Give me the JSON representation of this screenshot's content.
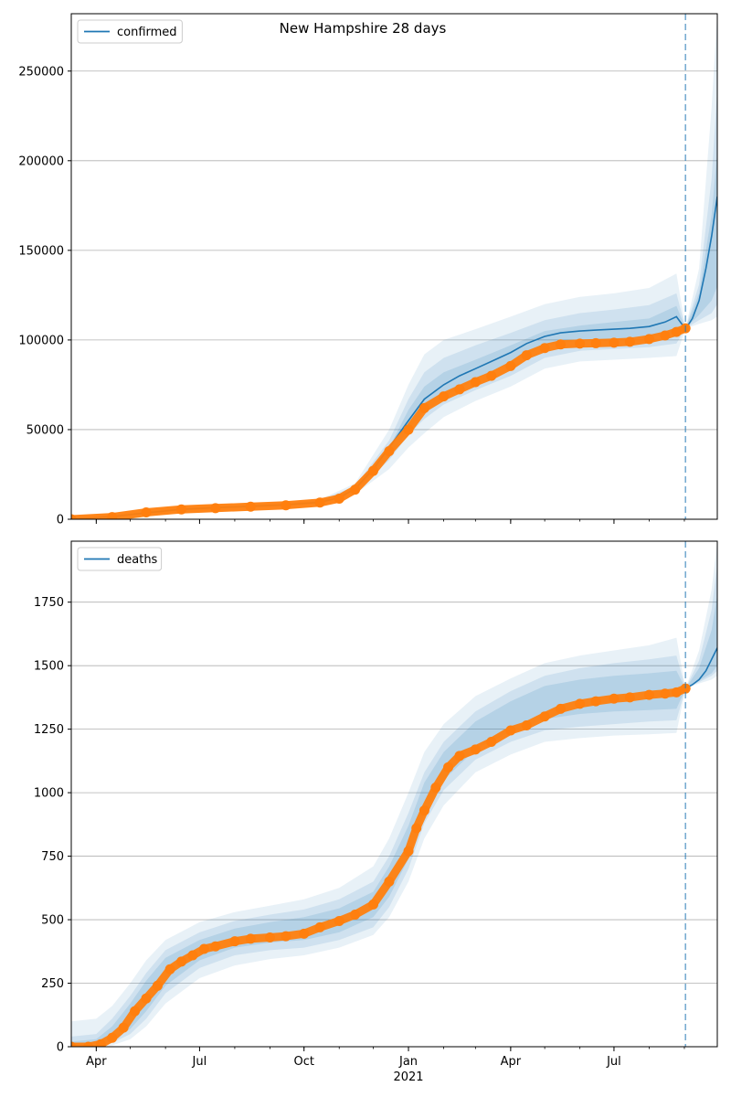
{
  "title": "New Hampshire 28 days",
  "colors": {
    "model": "#1f77b4",
    "observed": "#ff7f0e",
    "band": "#1f77b4",
    "grid": "#b0b0b0",
    "forecast_line": "#1f77b4"
  },
  "x_axis": {
    "start": "2020-03-10",
    "end": "2021-09-30",
    "ticks": [
      {
        "date": "2020-04-01",
        "label": "Apr"
      },
      {
        "date": "2020-07-01",
        "label": "Jul"
      },
      {
        "date": "2020-10-01",
        "label": "Oct"
      },
      {
        "date": "2021-01-01",
        "label": "Jan"
      },
      {
        "date": "2021-04-01",
        "label": "Apr"
      },
      {
        "date": "2021-07-01",
        "label": "Jul"
      }
    ],
    "year_label": {
      "date": "2021-01-01",
      "label": "2021"
    },
    "forecast_start": "2021-09-02"
  },
  "chart_data": [
    {
      "type": "line",
      "legend": "confirmed",
      "legend_position": "top-left",
      "grid": "horizontal",
      "ylim": [
        0,
        282000
      ],
      "yticks": [
        0,
        50000,
        100000,
        150000,
        200000,
        250000
      ],
      "series": [
        {
          "name": "confirmed",
          "role": "model",
          "x": [
            "2020-03-10",
            "2020-04-15",
            "2020-05-15",
            "2020-06-15",
            "2020-07-15",
            "2020-08-15",
            "2020-09-15",
            "2020-10-15",
            "2020-11-01",
            "2020-11-15",
            "2020-12-01",
            "2020-12-15",
            "2021-01-01",
            "2021-01-15",
            "2021-02-01",
            "2021-02-15",
            "2021-03-01",
            "2021-03-15",
            "2021-04-01",
            "2021-04-15",
            "2021-05-01",
            "2021-05-15",
            "2021-06-01",
            "2021-06-15",
            "2021-07-01",
            "2021-07-15",
            "2021-08-01",
            "2021-08-15",
            "2021-08-25",
            "2021-09-02",
            "2021-09-08",
            "2021-09-14",
            "2021-09-20",
            "2021-09-25",
            "2021-09-30"
          ],
          "values": [
            0,
            1500,
            3500,
            5500,
            6500,
            7200,
            8000,
            9500,
            12000,
            17000,
            28000,
            40000,
            55000,
            67000,
            75000,
            80000,
            84000,
            88000,
            93000,
            98000,
            102000,
            104000,
            105000,
            105500,
            106000,
            106500,
            107500,
            110000,
            113000,
            106000,
            112000,
            122000,
            140000,
            158000,
            180000
          ]
        },
        {
          "name": "observed",
          "role": "observed",
          "x": [
            "2020-03-10",
            "2020-04-15",
            "2020-05-15",
            "2020-06-15",
            "2020-07-15",
            "2020-08-15",
            "2020-09-15",
            "2020-10-15",
            "2020-11-01",
            "2020-11-15",
            "2020-12-01",
            "2020-12-15",
            "2021-01-01",
            "2021-01-15",
            "2021-02-01",
            "2021-02-15",
            "2021-03-01",
            "2021-03-15",
            "2021-04-01",
            "2021-04-15",
            "2021-05-01",
            "2021-05-15",
            "2021-06-01",
            "2021-06-15",
            "2021-07-01",
            "2021-07-15",
            "2021-08-01",
            "2021-08-15",
            "2021-08-25",
            "2021-09-02"
          ],
          "values": [
            0,
            1200,
            3800,
            5500,
            6200,
            7000,
            7800,
            9300,
            11500,
            16500,
            27000,
            38000,
            50000,
            62000,
            68500,
            72500,
            76500,
            80000,
            85500,
            91500,
            95500,
            97500,
            98000,
            98200,
            98500,
            99000,
            100500,
            102500,
            104500,
            106500
          ]
        }
      ],
      "bands": [
        {
          "level": "outer",
          "x": [
            "2020-03-10",
            "2020-06-15",
            "2020-10-15",
            "2020-11-15",
            "2020-12-15",
            "2021-01-01",
            "2021-01-15",
            "2021-02-01",
            "2021-03-01",
            "2021-04-01",
            "2021-05-01",
            "2021-06-01",
            "2021-07-01",
            "2021-08-01",
            "2021-08-25",
            "2021-09-02",
            "2021-09-14",
            "2021-09-25",
            "2021-09-30"
          ],
          "upper": [
            200,
            6500,
            11000,
            20000,
            50000,
            75000,
            92000,
            100000,
            106000,
            113000,
            120000,
            124000,
            126000,
            129000,
            137000,
            106500,
            140000,
            230000,
            282000
          ],
          "lower": [
            0,
            4500,
            8500,
            14000,
            28000,
            40000,
            48000,
            57000,
            66000,
            74000,
            84000,
            88000,
            89000,
            90000,
            91000,
            106500,
            109000,
            111000,
            113000
          ]
        },
        {
          "level": "middle",
          "x": [
            "2020-03-10",
            "2020-06-15",
            "2020-10-15",
            "2020-11-15",
            "2020-12-15",
            "2021-01-01",
            "2021-01-15",
            "2021-02-01",
            "2021-03-01",
            "2021-04-01",
            "2021-05-01",
            "2021-06-01",
            "2021-07-01",
            "2021-08-01",
            "2021-08-25",
            "2021-09-02",
            "2021-09-14",
            "2021-09-25",
            "2021-09-30"
          ],
          "upper": [
            100,
            6000,
            10500,
            18500,
            44000,
            67000,
            82000,
            90000,
            97000,
            104000,
            111000,
            115000,
            117000,
            119500,
            126000,
            106500,
            131000,
            190000,
            240000
          ],
          "lower": [
            0,
            5000,
            9000,
            15500,
            33000,
            47000,
            56000,
            64000,
            72000,
            80000,
            90000,
            94000,
            95000,
            96000,
            98000,
            106500,
            111000,
            115000,
            120000
          ]
        },
        {
          "level": "inner",
          "x": [
            "2020-03-10",
            "2020-06-15",
            "2020-10-15",
            "2020-11-15",
            "2020-12-15",
            "2021-01-01",
            "2021-01-15",
            "2021-02-01",
            "2021-03-01",
            "2021-04-01",
            "2021-05-01",
            "2021-06-01",
            "2021-07-01",
            "2021-08-01",
            "2021-08-25",
            "2021-09-02",
            "2021-09-14",
            "2021-09-25",
            "2021-09-30"
          ],
          "upper": [
            50,
            5700,
            10000,
            17500,
            40000,
            61000,
            74000,
            82000,
            89000,
            97000,
            105000,
            108000,
            110000,
            112000,
            119000,
            106500,
            126000,
            170000,
            205000
          ],
          "lower": [
            0,
            5300,
            9200,
            16000,
            35000,
            50000,
            60000,
            68000,
            78000,
            87000,
            97000,
            100000,
            100500,
            101500,
            104000,
            106500,
            114000,
            122000,
            130000
          ]
        }
      ]
    },
    {
      "type": "line",
      "legend": "deaths",
      "legend_position": "top-left",
      "grid": "horizontal",
      "ylim": [
        0,
        1990
      ],
      "yticks": [
        0,
        250,
        500,
        750,
        1000,
        1250,
        1500,
        1750
      ],
      "series": [
        {
          "name": "deaths",
          "role": "model",
          "x": [
            "2021-09-02",
            "2021-09-08",
            "2021-09-14",
            "2021-09-20",
            "2021-09-25",
            "2021-09-30"
          ],
          "values": [
            1410,
            1425,
            1445,
            1480,
            1525,
            1570
          ]
        },
        {
          "name": "observed",
          "role": "observed",
          "x": [
            "2020-03-10",
            "2020-03-25",
            "2020-04-05",
            "2020-04-15",
            "2020-04-25",
            "2020-05-05",
            "2020-05-15",
            "2020-05-25",
            "2020-06-05",
            "2020-06-15",
            "2020-06-25",
            "2020-07-05",
            "2020-07-15",
            "2020-08-01",
            "2020-08-15",
            "2020-09-01",
            "2020-09-15",
            "2020-10-01",
            "2020-10-15",
            "2020-11-01",
            "2020-11-15",
            "2020-12-01",
            "2020-12-15",
            "2021-01-01",
            "2021-01-08",
            "2021-01-15",
            "2021-01-25",
            "2021-02-05",
            "2021-02-15",
            "2021-03-01",
            "2021-03-15",
            "2021-04-01",
            "2021-04-15",
            "2021-05-01",
            "2021-05-15",
            "2021-06-01",
            "2021-06-15",
            "2021-07-01",
            "2021-07-15",
            "2021-08-01",
            "2021-08-15",
            "2021-08-25",
            "2021-09-02"
          ],
          "values": [
            0,
            0,
            10,
            35,
            75,
            140,
            190,
            240,
            305,
            335,
            360,
            385,
            395,
            415,
            425,
            430,
            435,
            445,
            470,
            495,
            520,
            560,
            650,
            770,
            860,
            930,
            1020,
            1100,
            1145,
            1170,
            1200,
            1245,
            1265,
            1300,
            1330,
            1350,
            1360,
            1370,
            1375,
            1385,
            1390,
            1395,
            1410
          ]
        }
      ],
      "bands": [
        {
          "level": "outer",
          "x": [
            "2020-03-10",
            "2020-04-01",
            "2020-04-15",
            "2020-05-01",
            "2020-05-15",
            "2020-06-01",
            "2020-07-01",
            "2020-08-01",
            "2020-09-01",
            "2020-10-01",
            "2020-11-01",
            "2020-12-01",
            "2020-12-15",
            "2021-01-01",
            "2021-01-15",
            "2021-02-01",
            "2021-03-01",
            "2021-04-01",
            "2021-05-01",
            "2021-06-01",
            "2021-07-01",
            "2021-08-01",
            "2021-08-25",
            "2021-09-02",
            "2021-09-14",
            "2021-09-25",
            "2021-09-30"
          ],
          "upper": [
            100,
            110,
            160,
            250,
            340,
            420,
            490,
            530,
            555,
            580,
            625,
            710,
            820,
            1000,
            1160,
            1270,
            1380,
            1450,
            1510,
            1540,
            1560,
            1580,
            1610,
            1410,
            1560,
            1800,
            1990
          ],
          "lower": [
            0,
            0,
            5,
            30,
            80,
            170,
            270,
            320,
            345,
            360,
            390,
            440,
            510,
            650,
            820,
            950,
            1080,
            1150,
            1200,
            1215,
            1225,
            1230,
            1235,
            1410,
            1430,
            1445,
            1460
          ]
        },
        {
          "level": "middle",
          "x": [
            "2020-03-10",
            "2020-04-01",
            "2020-04-15",
            "2020-05-01",
            "2020-05-15",
            "2020-06-01",
            "2020-07-01",
            "2020-08-01",
            "2020-09-01",
            "2020-10-01",
            "2020-11-01",
            "2020-12-01",
            "2020-12-15",
            "2021-01-01",
            "2021-01-15",
            "2021-02-01",
            "2021-03-01",
            "2021-04-01",
            "2021-05-01",
            "2021-06-01",
            "2021-07-01",
            "2021-08-01",
            "2021-08-25",
            "2021-09-02",
            "2021-09-14",
            "2021-09-25",
            "2021-09-30"
          ],
          "upper": [
            40,
            50,
            110,
            200,
            290,
            380,
            450,
            495,
            520,
            540,
            580,
            650,
            750,
            920,
            1080,
            1200,
            1320,
            1400,
            1460,
            1490,
            1510,
            1525,
            1540,
            1410,
            1520,
            1720,
            1900
          ],
          "lower": [
            0,
            0,
            15,
            50,
            110,
            210,
            310,
            360,
            380,
            390,
            420,
            470,
            550,
            700,
            880,
            1010,
            1130,
            1200,
            1245,
            1260,
            1270,
            1280,
            1285,
            1410,
            1435,
            1460,
            1480
          ]
        },
        {
          "level": "inner",
          "x": [
            "2020-03-10",
            "2020-04-01",
            "2020-04-15",
            "2020-05-01",
            "2020-05-15",
            "2020-06-01",
            "2020-07-01",
            "2020-08-01",
            "2020-09-01",
            "2020-10-01",
            "2020-11-01",
            "2020-12-01",
            "2020-12-15",
            "2021-01-01",
            "2021-01-15",
            "2021-02-01",
            "2021-03-01",
            "2021-04-01",
            "2021-05-01",
            "2021-06-01",
            "2021-07-01",
            "2021-08-01",
            "2021-08-25",
            "2021-09-02",
            "2021-09-14",
            "2021-09-25",
            "2021-09-30"
          ],
          "upper": [
            20,
            30,
            80,
            170,
            260,
            350,
            420,
            465,
            490,
            510,
            545,
            610,
            710,
            870,
            1040,
            1160,
            1280,
            1360,
            1420,
            1445,
            1460,
            1470,
            1480,
            1410,
            1490,
            1640,
            1780
          ],
          "lower": [
            0,
            0,
            25,
            70,
            140,
            240,
            340,
            390,
            410,
            420,
            450,
            510,
            590,
            740,
            920,
            1050,
            1170,
            1240,
            1290,
            1310,
            1320,
            1325,
            1330,
            1410,
            1440,
            1470,
            1500
          ]
        }
      ]
    }
  ]
}
